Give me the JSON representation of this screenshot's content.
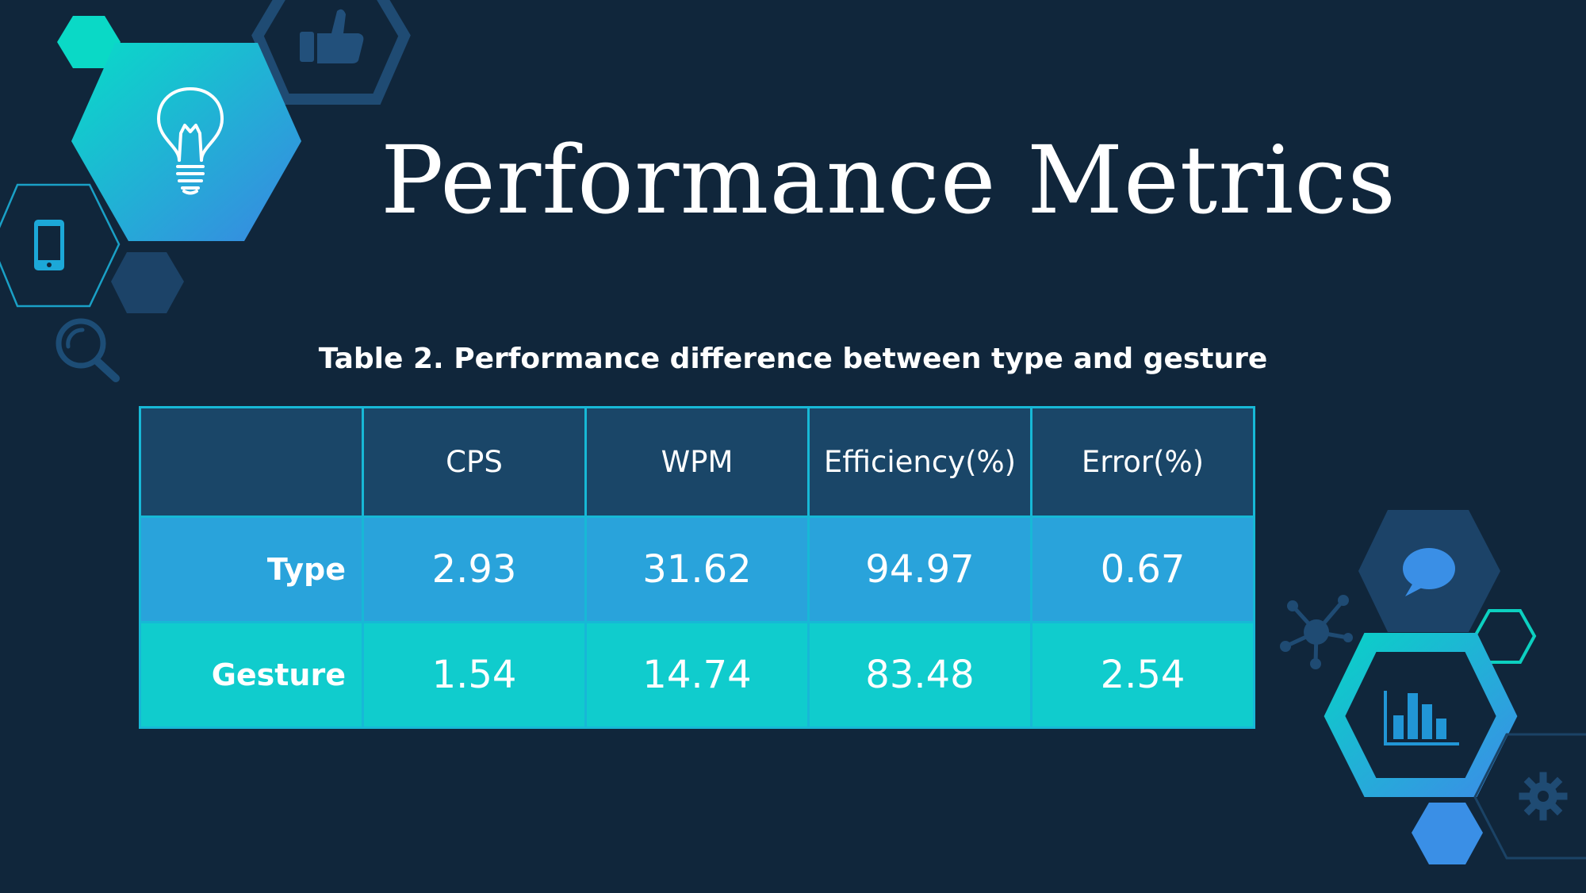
{
  "title": "Performance Metrics",
  "caption": "Table 2. Performance difference between type and gesture",
  "table": {
    "headers": [
      "",
      "CPS",
      "WPM",
      "Efficiency(%)",
      "Error(%)"
    ],
    "rows": [
      {
        "label": "Type",
        "values": [
          "2.93",
          "31.62",
          "94.97",
          "0.67"
        ]
      },
      {
        "label": "Gesture",
        "values": [
          "1.54",
          "14.74",
          "83.48",
          "2.54"
        ]
      }
    ]
  },
  "colors": {
    "background": "#10263b",
    "header_fill": "#1a4668",
    "type_row": "#29a3db",
    "gesture_row": "#10cccd",
    "border": "#17b8d6"
  },
  "icons": [
    "lightbulb-icon",
    "thumbs-up-icon",
    "smartphone-icon",
    "magnifier-icon",
    "chat-bubble-icon",
    "network-node-icon",
    "bar-chart-icon",
    "gear-icon"
  ]
}
